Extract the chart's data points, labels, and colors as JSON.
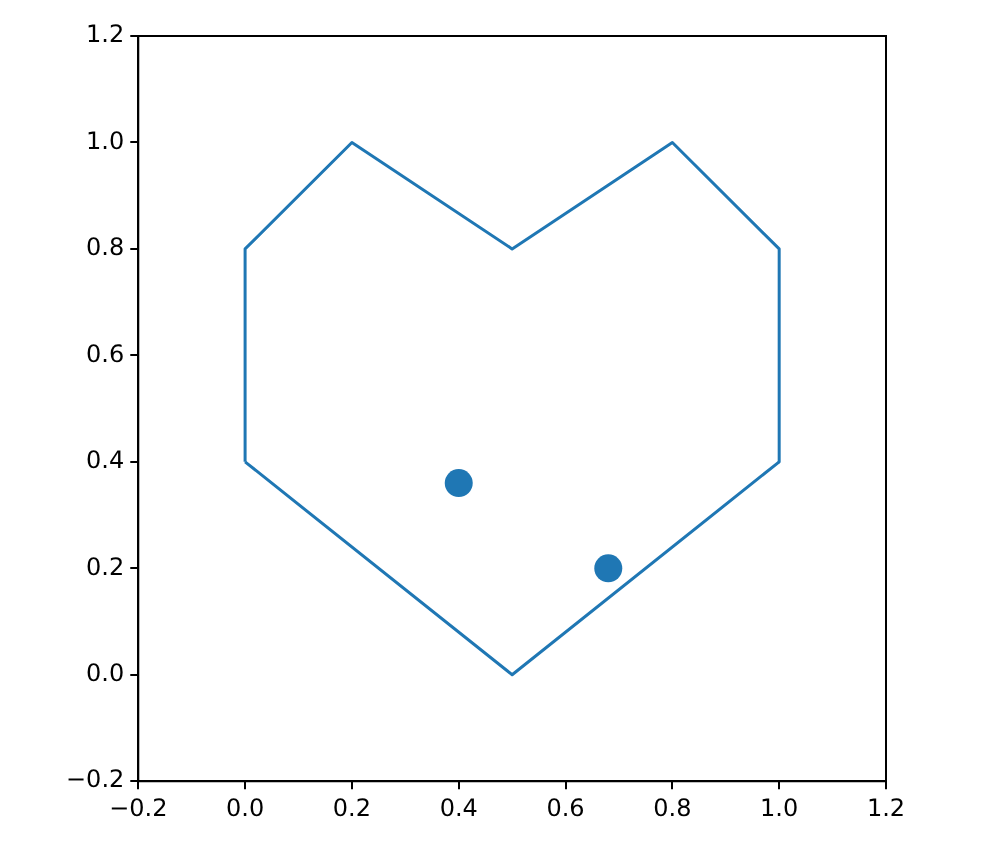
{
  "chart_data": {
    "type": "line",
    "grid": false,
    "legend": false,
    "xlim": [
      -0.2,
      1.2
    ],
    "ylim": [
      -0.2,
      1.2
    ],
    "xticks": [
      {
        "value": -0.2,
        "label": "−0.2"
      },
      {
        "value": 0,
        "label": "0.0"
      },
      {
        "value": 0.2,
        "label": "0.2"
      },
      {
        "value": 0.4,
        "label": "0.4"
      },
      {
        "value": 0.6,
        "label": "0.6"
      },
      {
        "value": 0.8,
        "label": "0.8"
      },
      {
        "value": 1.0,
        "label": "1.0"
      },
      {
        "value": 1.2,
        "label": "1.2"
      }
    ],
    "yticks": [
      {
        "value": -0.2,
        "label": "−0.2"
      },
      {
        "value": 0,
        "label": "0.0"
      },
      {
        "value": 0.2,
        "label": "0.2"
      },
      {
        "value": 0.4,
        "label": "0.4"
      },
      {
        "value": 0.6,
        "label": "0.6"
      },
      {
        "value": 0.8,
        "label": "0.8"
      },
      {
        "value": 1.0,
        "label": "1.0"
      },
      {
        "value": 1.2,
        "label": "1.2"
      }
    ],
    "series": [
      {
        "type": "line",
        "color": "#1f77b4",
        "marker": "none",
        "line_style": "solid",
        "x": [
          0,
          0,
          0.2,
          0.5,
          0.8,
          1.0,
          1.0
        ],
        "values": [
          0.4,
          0.8,
          1.0,
          0.8,
          1.0,
          0.8,
          0.4
        ]
      },
      {
        "color": "#1f77b4",
        "marker": "none",
        "line_style": "solid",
        "x": [
          0,
          0.5,
          1.0
        ],
        "values": [
          0.4,
          0.0,
          0.4
        ]
      },
      {
        "type": "scatter",
        "color": "#1f77b4",
        "marker": "circle",
        "x": [
          0.4,
          0.68
        ],
        "values": [
          0.36,
          0.2
        ]
      }
    ]
  }
}
